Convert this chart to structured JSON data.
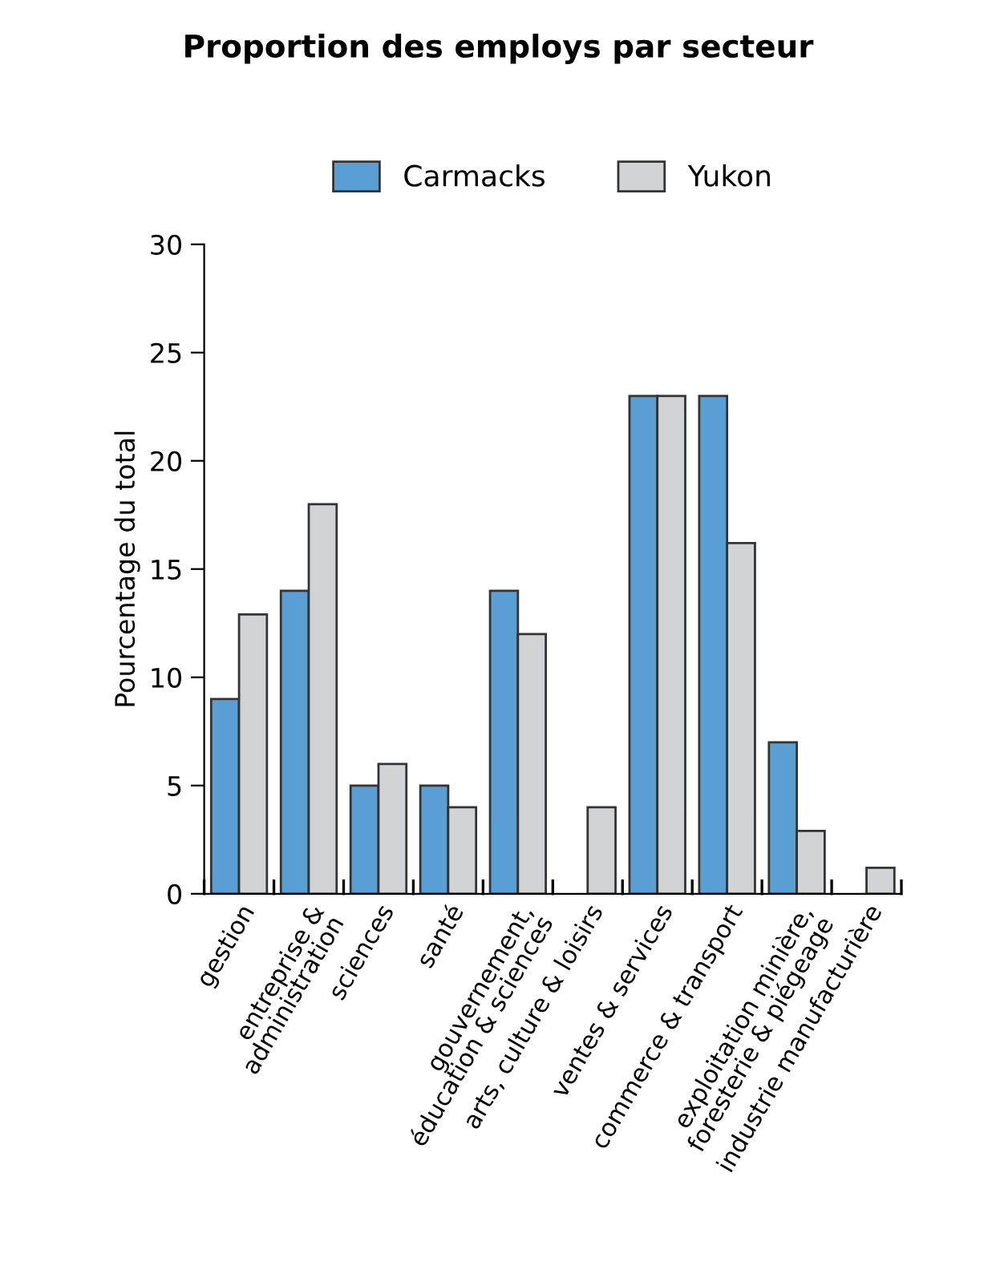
{
  "chart_data": {
    "type": "bar",
    "title": "Proportion des employs par secteur",
    "ylabel": "Pourcentage du total",
    "categories": [
      "gestion",
      "entreprise &\nadministration",
      "sciences",
      "santé",
      "gouvernement,\néducation & sciences",
      "arts, culture & loisirs",
      "ventes & services",
      "commerce & transport",
      "exploitation minière,\nforesterie & piégeage",
      "industrie manufacturière"
    ],
    "series": [
      {
        "name": "Carmacks",
        "color": "#5a9fd4",
        "values": [
          9,
          14,
          5,
          5,
          14,
          0,
          23,
          23,
          7,
          0
        ]
      },
      {
        "name": "Yukon",
        "color": "#d1d3d4",
        "values": [
          12.9,
          18,
          6,
          4,
          12,
          4,
          23,
          16.2,
          2.9,
          1.2
        ]
      }
    ],
    "ylim": [
      0,
      30
    ],
    "yticks": [
      0,
      5,
      10,
      15,
      20,
      25,
      30
    ],
    "grid": false,
    "legend": "top"
  }
}
